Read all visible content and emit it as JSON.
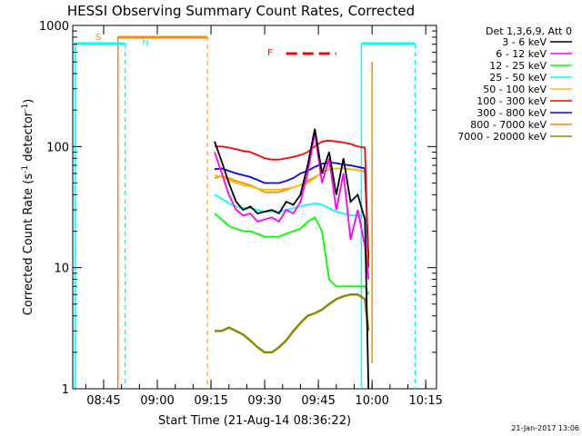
{
  "chart_data": {
    "type": "line",
    "title": "HESSI Observing Summary Count Rates, Corrected",
    "xlabel": "Start Time (21-Aug-14 08:36:22)",
    "ylabel_main": "Corrected Count Rate (s",
    "ylabel_sup1": "-1",
    "ylabel_mid": " detector",
    "ylabel_sup2": "-1",
    "ylabel_end": ")",
    "yscale": "log",
    "xlim": [
      "08:36:22",
      "10:18:00"
    ],
    "ylim": [
      1,
      1000
    ],
    "x_ticks": [
      "08:45",
      "09:00",
      "09:15",
      "09:30",
      "09:45",
      "10:00",
      "10:15"
    ],
    "y_ticks": [
      "1",
      "10",
      "100",
      "1000"
    ],
    "legend_position": "outside-right",
    "legend_title": "Det 1,3,6,9, Att 0",
    "series": [
      {
        "name": "3 - 6 keV",
        "color": "#000000"
      },
      {
        "name": "6 - 12 keV",
        "color": "#ff00ff"
      },
      {
        "name": "12 - 25 keV",
        "color": "#00ff00"
      },
      {
        "name": "25 - 50 keV",
        "color": "#00ffff"
      },
      {
        "name": "50 - 100 keV",
        "color": "#ffbb00"
      },
      {
        "name": "100 - 300 keV",
        "color": "#ff0000"
      },
      {
        "name": "300 - 800 keV",
        "color": "#0000ff"
      },
      {
        "name": "800 - 7000 keV",
        "color": "#ff8800"
      },
      {
        "name": "7000 - 20000 keV",
        "color": "#8b8b00"
      }
    ],
    "data": {
      "t": [
        "09:16",
        "09:18",
        "09:20",
        "09:22",
        "09:24",
        "09:26",
        "09:28",
        "09:30",
        "09:32",
        "09:34",
        "09:36",
        "09:38",
        "09:40",
        "09:42",
        "09:44",
        "09:46",
        "09:48",
        "09:50",
        "09:52",
        "09:54",
        "09:56",
        "09:58",
        "09:59"
      ],
      "s3_6": [
        110,
        75,
        50,
        35,
        30,
        32,
        28,
        29,
        30,
        28,
        35,
        33,
        40,
        70,
        140,
        60,
        90,
        40,
        80,
        35,
        40,
        25,
        1
      ],
      "s6_12": [
        90,
        60,
        40,
        30,
        27,
        28,
        24,
        25,
        26,
        24,
        30,
        28,
        35,
        60,
        130,
        50,
        80,
        30,
        60,
        17,
        30,
        15,
        8
      ],
      "s12_25": [
        28,
        25,
        22,
        21,
        20,
        20,
        19,
        18,
        18,
        18,
        19,
        20,
        21,
        24,
        26,
        20,
        8,
        7,
        7,
        7,
        7,
        7,
        6
      ],
      "s25_50": [
        40,
        37,
        34,
        32,
        31,
        31,
        30,
        29,
        29,
        29,
        30,
        31,
        32,
        33,
        34,
        33,
        31,
        29,
        28,
        27,
        27,
        27,
        10
      ],
      "s50_100": [
        58,
        56,
        53,
        50,
        48,
        47,
        45,
        44,
        44,
        44,
        45,
        46,
        48,
        50,
        55,
        62,
        65,
        66,
        66,
        65,
        64,
        63,
        12
      ],
      "s100_300": [
        100,
        100,
        98,
        95,
        92,
        90,
        85,
        80,
        78,
        78,
        80,
        82,
        85,
        90,
        100,
        110,
        112,
        110,
        108,
        105,
        100,
        98,
        10
      ],
      "s300_800": [
        65,
        66,
        63,
        60,
        58,
        56,
        53,
        50,
        50,
        50,
        52,
        55,
        60,
        63,
        68,
        72,
        74,
        73,
        71,
        70,
        68,
        66,
        12
      ],
      "s800_7000": [
        55,
        57,
        55,
        52,
        50,
        48,
        45,
        42,
        42,
        42,
        44,
        46,
        48,
        52,
        56,
        60,
        65,
        66,
        66,
        65,
        64,
        62,
        12
      ],
      "s7000_20000": [
        3,
        3,
        3.2,
        3,
        2.8,
        2.5,
        2.2,
        2,
        2,
        2.2,
        2.5,
        3,
        3.5,
        4,
        4.2,
        4.5,
        5,
        5.5,
        5.8,
        6,
        6,
        5.5,
        3
      ]
    },
    "attenuator_lines": [
      "08:37",
      "09:57",
      "10:12"
    ],
    "night_lines": [
      "08:51",
      "09:14",
      "10:12"
    ],
    "annotations": [
      {
        "label": "S",
        "color": "#ff8800"
      },
      {
        "label": "N",
        "color": "#00ffff"
      },
      {
        "label": "F",
        "color": "#ff0000"
      }
    ],
    "footer_date": "21-Jan-2017 13:06"
  }
}
